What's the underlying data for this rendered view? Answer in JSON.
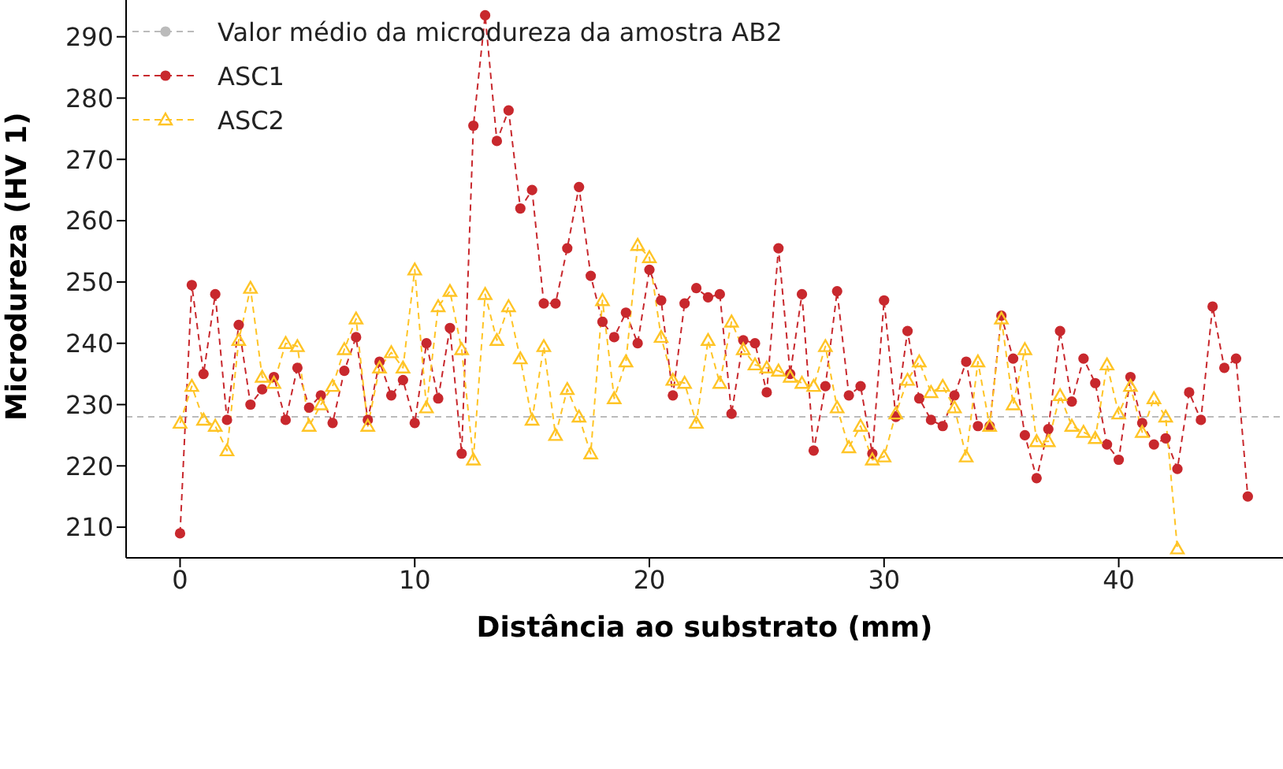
{
  "chart_data": {
    "type": "line",
    "xlabel": "Distância ao substrato (mm)",
    "ylabel": "Microdureza (HV 1)",
    "xlim": [
      -2.3,
      47
    ],
    "ylim": [
      205,
      296
    ],
    "xticks": [
      0,
      10,
      20,
      30,
      40
    ],
    "yticks": [
      210,
      220,
      230,
      240,
      250,
      260,
      270,
      280,
      290
    ],
    "grid": false,
    "legend": "top left",
    "line_style": "dashed",
    "ref_lines": [
      {
        "axis": "y",
        "value": 228,
        "label": "Valor médio da microdureza da amostra AB2",
        "color": "#bbbbbb",
        "line_style": "dashed"
      }
    ],
    "series": [
      {
        "name": "ASC1",
        "color": "#c8282d",
        "marker": "circle",
        "x": [
          0,
          0.5,
          1,
          1.5,
          2,
          2.5,
          3,
          3.5,
          4,
          4.5,
          5,
          5.5,
          6,
          6.5,
          7,
          7.5,
          8,
          8.5,
          9,
          9.5,
          10,
          10.5,
          11,
          11.5,
          12,
          12.5,
          13,
          13.5,
          14,
          14.5,
          15,
          15.5,
          16,
          16.5,
          17,
          17.5,
          18,
          18.5,
          19,
          19.5,
          20,
          20.5,
          21,
          21.5,
          22,
          22.5,
          23,
          23.5,
          24,
          24.5,
          25,
          25.5,
          26,
          26.5,
          27,
          27.5,
          28,
          28.5,
          29,
          29.5,
          30,
          30.5,
          31,
          31.5,
          32,
          32.5,
          33,
          33.5,
          34,
          34.5,
          35,
          35.5,
          36,
          36.5,
          37,
          37.5,
          38,
          38.5,
          39,
          39.5,
          40,
          40.5,
          41,
          41.5,
          42,
          42.5,
          43,
          43.5,
          44,
          44.5,
          45,
          45.5
        ],
        "values": [
          209,
          249.5,
          235,
          248,
          227.5,
          243,
          230,
          232.5,
          234.5,
          227.5,
          236,
          229.5,
          231.5,
          227,
          235.5,
          241,
          227.5,
          237,
          231.5,
          234,
          227,
          240,
          231,
          242.5,
          222,
          275.5,
          293.5,
          273,
          278,
          262,
          265,
          246.5,
          246.5,
          255.5,
          265.5,
          251,
          243.5,
          241,
          245,
          240,
          252,
          247,
          231.5,
          246.5,
          249,
          247.5,
          248,
          228.5,
          240.5,
          240,
          232,
          255.5,
          235,
          248,
          222.5,
          233,
          248.5,
          231.5,
          233,
          222,
          247,
          228,
          242,
          231,
          227.5,
          226.5,
          231.5,
          237,
          226.5,
          226.5,
          244.5,
          237.5,
          225,
          218,
          226,
          242,
          230.5,
          237.5,
          233.5,
          223.5,
          221,
          234.5,
          227,
          223.5,
          224.5,
          219.5,
          232,
          227.5,
          246,
          236,
          237.5,
          215
        ]
      },
      {
        "name": "ASC2",
        "color": "#ffc425",
        "marker": "triangle",
        "x": [
          0,
          0.5,
          1,
          1.5,
          2,
          2.5,
          3,
          3.5,
          4,
          4.5,
          5,
          5.5,
          6,
          6.5,
          7,
          7.5,
          8,
          8.5,
          9,
          9.5,
          10,
          10.5,
          11,
          11.5,
          12,
          12.5,
          13,
          13.5,
          14,
          14.5,
          15,
          15.5,
          16,
          16.5,
          17,
          17.5,
          18,
          18.5,
          19,
          19.5,
          20,
          20.5,
          21,
          21.5,
          22,
          22.5,
          23,
          23.5,
          24,
          24.5,
          25,
          25.5,
          26,
          26.5,
          27,
          27.5,
          28,
          28.5,
          29,
          29.5,
          30,
          30.5,
          31,
          31.5,
          32,
          32.5,
          33,
          33.5,
          34,
          34.5,
          35,
          35.5,
          36,
          36.5,
          37,
          37.5,
          38,
          38.5,
          39,
          39.5,
          40,
          40.5,
          41,
          41.5,
          42,
          42.5
        ],
        "values": [
          227,
          233,
          227.5,
          226.5,
          222.5,
          240.5,
          249,
          234.5,
          233.5,
          240,
          239.5,
          226.5,
          230,
          233,
          239,
          244,
          226.5,
          236,
          238.5,
          236,
          252,
          229.5,
          246,
          248.5,
          239,
          221,
          248,
          240.5,
          246,
          237.5,
          227.5,
          239.5,
          225,
          232.5,
          228,
          222,
          247,
          231,
          237,
          256,
          254,
          241,
          234,
          233.5,
          227,
          240.5,
          233.5,
          243.5,
          239,
          236.5,
          236,
          235.5,
          234.5,
          233.5,
          233,
          239.5,
          229.5,
          223,
          226.5,
          221,
          221.5,
          228.5,
          234,
          237,
          232,
          233,
          229.5,
          221.5,
          237,
          226.5,
          244,
          230,
          239,
          224,
          224,
          231.5,
          226.5,
          225.5,
          224.5,
          236.5,
          228.5,
          233,
          225.5,
          231,
          228,
          206.5
        ]
      }
    ]
  }
}
